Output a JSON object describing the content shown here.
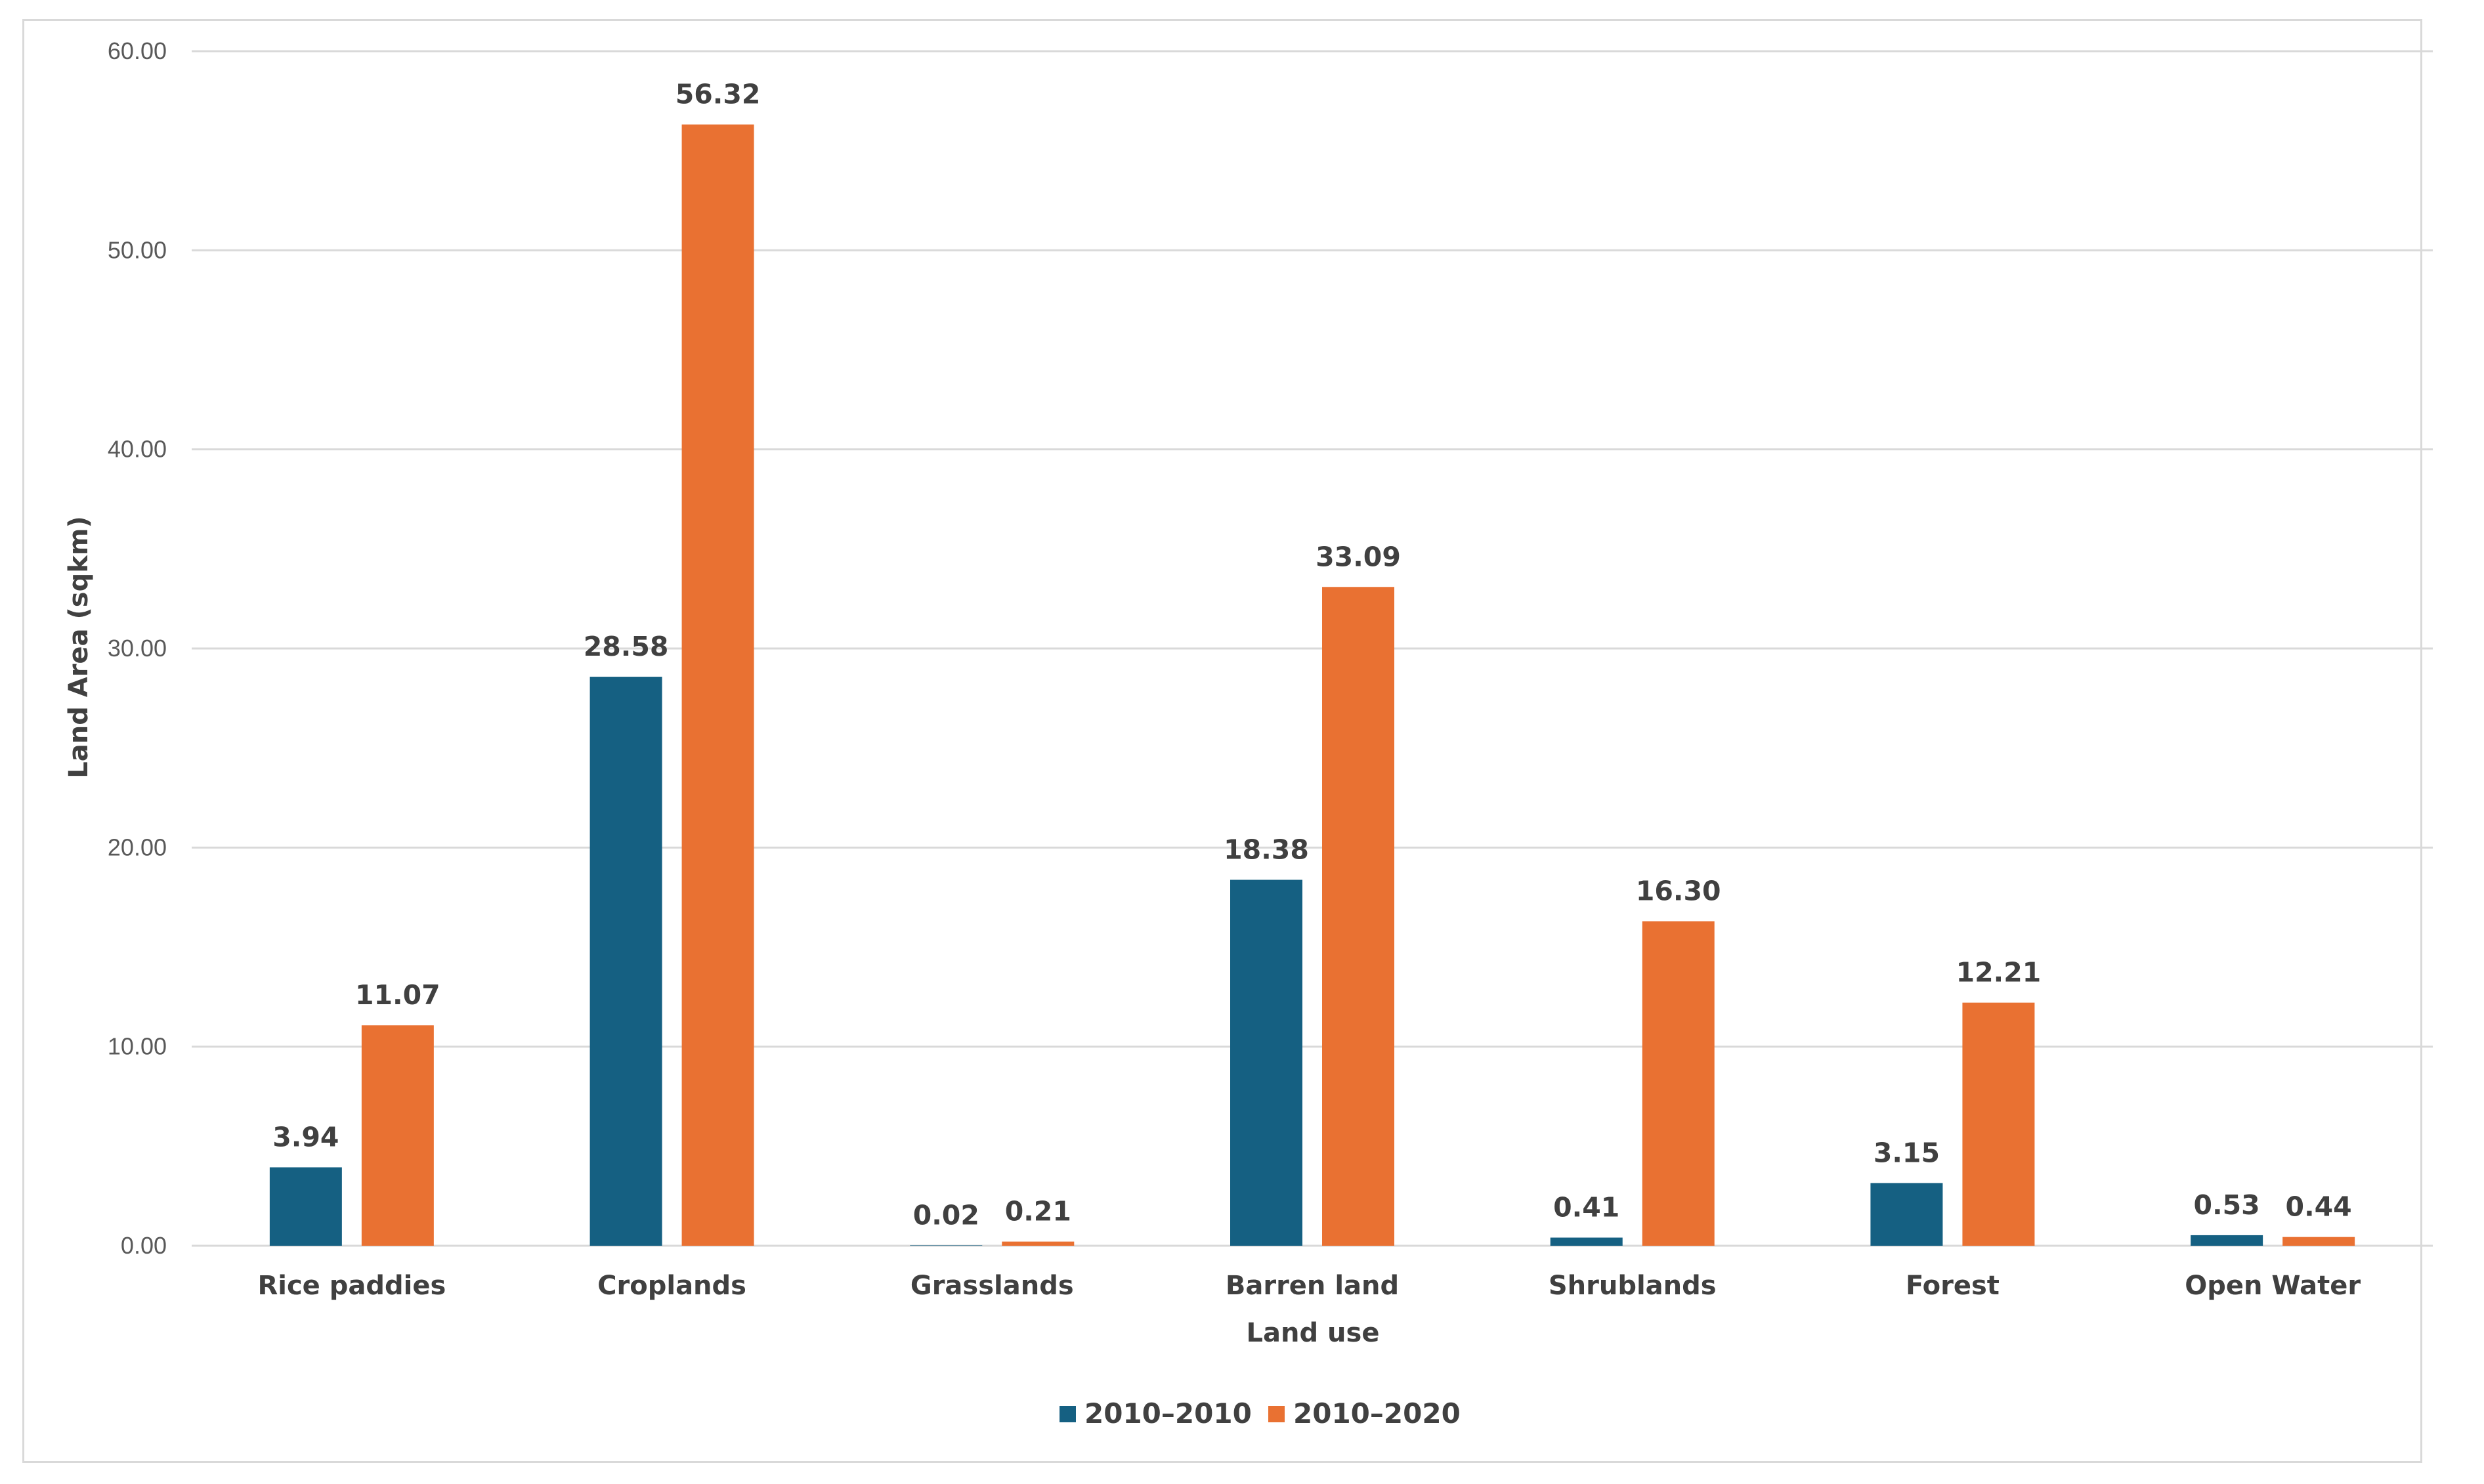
{
  "chart_data": {
    "type": "bar",
    "title": "",
    "xlabel": "Land use",
    "ylabel": "Land Area (sqkm)",
    "ylim": [
      0,
      60
    ],
    "yticks": [
      "0.00",
      "10.00",
      "20.00",
      "30.00",
      "40.00",
      "50.00",
      "60.00"
    ],
    "grid": true,
    "legend_position": "bottom",
    "categories": [
      "Rice paddies",
      "Croplands",
      "Grasslands",
      "Barren land",
      "Shrublands",
      "Forest",
      "Open Water"
    ],
    "series": [
      {
        "name": "2010–2010",
        "color": "#156082",
        "values": [
          3.94,
          28.58,
          0.02,
          18.38,
          0.41,
          3.15,
          0.53
        ],
        "labels": [
          "3.94",
          "28.58",
          "0.02",
          "18.38",
          "0.41",
          "3.15",
          "0.53"
        ]
      },
      {
        "name": "2010–2020",
        "color": "#E97132",
        "values": [
          11.07,
          56.32,
          0.21,
          33.09,
          16.3,
          12.21,
          0.44
        ],
        "labels": [
          "11.07",
          "56.32",
          "0.21",
          "33.09",
          "16.30",
          "12.21",
          "0.44"
        ]
      }
    ]
  }
}
